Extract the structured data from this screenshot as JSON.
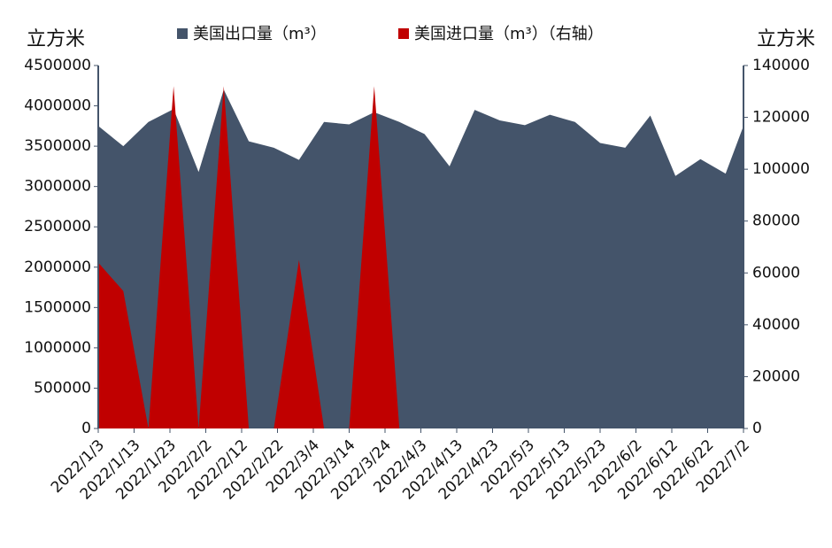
{
  "chart_data": {
    "type": "area",
    "left_unit": "立方米",
    "right_unit": "立方米",
    "x": [
      "2022/1/3",
      "2022/1/10",
      "2022/1/17",
      "2022/1/24",
      "2022/1/31",
      "2022/2/7",
      "2022/2/14",
      "2022/2/21",
      "2022/2/28",
      "2022/3/7",
      "2022/3/14",
      "2022/3/21",
      "2022/3/28",
      "2022/4/4",
      "2022/4/11",
      "2022/4/18",
      "2022/4/25",
      "2022/5/2",
      "2022/5/9",
      "2022/5/16",
      "2022/5/23",
      "2022/5/30",
      "2022/6/6",
      "2022/6/13",
      "2022/6/20",
      "2022/6/27",
      "2022/7/2"
    ],
    "series": [
      {
        "name": "美国出口量（m³）",
        "color": "#44546a",
        "values": [
          3750000,
          3500000,
          3800000,
          3960000,
          3180000,
          4200000,
          3560000,
          3480000,
          3330000,
          3800000,
          3770000,
          3920000,
          3800000,
          3650000,
          3250000,
          3950000,
          3820000,
          3760000,
          3890000,
          3800000,
          3540000,
          3480000,
          3880000,
          3130000,
          3340000,
          3160000,
          3750000
        ]
      },
      {
        "name": "美国进口量（m³）（右轴）",
        "color": "#c00000",
        "axis": "y2",
        "values": [
          64000,
          53000,
          0,
          132000,
          0,
          132000,
          0,
          0,
          65000,
          0,
          0,
          132000,
          0,
          null,
          null,
          null,
          null,
          null,
          null,
          null,
          null,
          null,
          null,
          null,
          null,
          null,
          null
        ]
      }
    ],
    "xticks": [
      "2022/1/3",
      "2022/1/13",
      "2022/1/23",
      "2022/2/2",
      "2022/2/12",
      "2022/2/22",
      "2022/3/4",
      "2022/3/14",
      "2022/3/24",
      "2022/4/3",
      "2022/4/13",
      "2022/4/23",
      "2022/5/3",
      "2022/5/13",
      "2022/5/23",
      "2022/6/2",
      "2022/6/12",
      "2022/6/22",
      "2022/7/2"
    ],
    "ylim": [
      0,
      4500000
    ],
    "yticks": [
      0,
      500000,
      1000000,
      1500000,
      2000000,
      2500000,
      3000000,
      3500000,
      4000000,
      4500000
    ],
    "y2lim": [
      0,
      140000
    ],
    "y2ticks": [
      0,
      20000,
      40000,
      60000,
      80000,
      100000,
      120000,
      140000
    ]
  }
}
